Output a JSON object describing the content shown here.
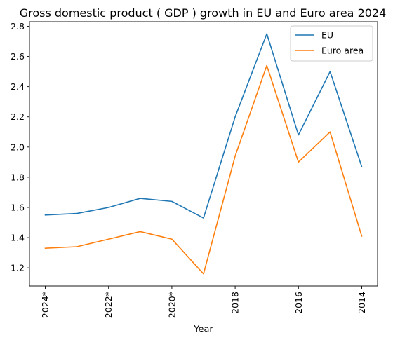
{
  "chart_data": {
    "type": "line",
    "title": "Gross domestic product ( GDP ) growth in EU and Euro area 2024",
    "xlabel": "Year",
    "ylabel": "",
    "x_ticks": [
      "2024*",
      "2022*",
      "2020*",
      "2018",
      "2016",
      "2014"
    ],
    "x_points": 11,
    "ylim": [
      1.08,
      2.83
    ],
    "y_ticks": [
      "1.2",
      "1.4",
      "1.6",
      "1.8",
      "2.0",
      "2.2",
      "2.4",
      "2.6",
      "2.8"
    ],
    "y_tick_values": [
      1.2,
      1.4,
      1.6,
      1.8,
      2.0,
      2.2,
      2.4,
      2.6,
      2.8
    ],
    "grid": false,
    "legend_position": "top-right",
    "series": [
      {
        "name": "EU",
        "color": "#1f77b4",
        "values": [
          1.55,
          1.56,
          1.6,
          1.66,
          1.64,
          1.53,
          2.2,
          2.75,
          2.08,
          2.5,
          1.87
        ]
      },
      {
        "name": "Euro area",
        "color": "#ff7f0e",
        "values": [
          1.33,
          1.34,
          1.39,
          1.44,
          1.39,
          1.16,
          1.94,
          2.54,
          1.9,
          2.1,
          1.41
        ]
      }
    ]
  }
}
